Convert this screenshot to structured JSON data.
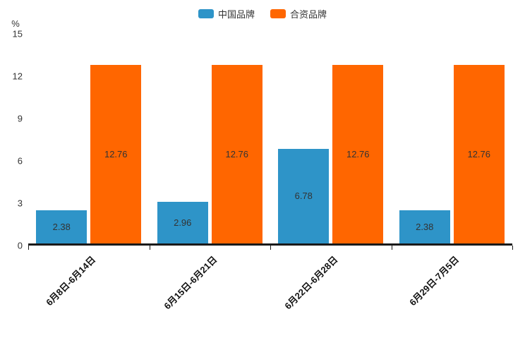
{
  "chart_data": {
    "type": "bar",
    "categories": [
      "6月8日-6月14日",
      "6月15日-6月21日",
      "6月22日-6月28日",
      "6月29日-7月5日"
    ],
    "series": [
      {
        "name": "中国品牌",
        "color": "#2e94c8",
        "values": [
          2.38,
          2.96,
          6.78,
          2.38
        ]
      },
      {
        "name": "合资品牌",
        "color": "#ff6600",
        "values": [
          12.76,
          12.76,
          12.76,
          12.76
        ]
      }
    ],
    "title": "",
    "xlabel": "",
    "ylabel": "%",
    "ylim": [
      0,
      15
    ],
    "yticks": [
      0,
      3,
      6,
      9,
      12,
      15
    ],
    "legend_position": "top",
    "grid": false,
    "value_label_position": "inside-center"
  }
}
